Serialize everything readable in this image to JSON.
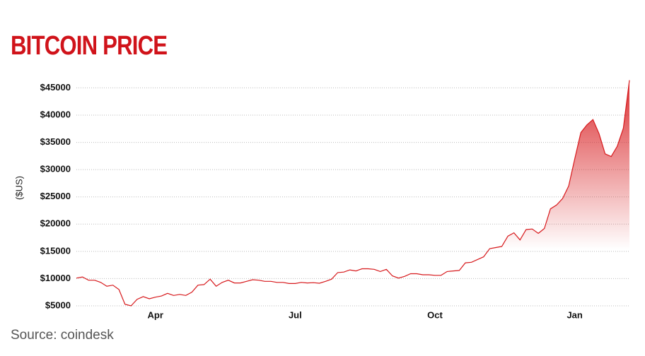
{
  "chart_data": {
    "type": "line",
    "title": "BITCOIN PRICE",
    "y_label": "($US)",
    "source": "Source: coindesk",
    "color": "#d7191c",
    "grid": true,
    "categories": [
      null,
      null,
      null,
      null,
      null,
      null,
      null,
      null,
      null,
      null,
      null,
      null,
      null,
      "Apr",
      null,
      null,
      null,
      null,
      null,
      null,
      null,
      null,
      null,
      null,
      null,
      null,
      null,
      null,
      null,
      null,
      null,
      null,
      null,
      null,
      null,
      null,
      "Jul",
      null,
      null,
      null,
      null,
      null,
      null,
      null,
      null,
      null,
      null,
      null,
      null,
      null,
      null,
      null,
      null,
      null,
      null,
      null,
      null,
      null,
      null,
      "Oct",
      null,
      null,
      null,
      null,
      null,
      null,
      null,
      null,
      null,
      null,
      null,
      null,
      null,
      null,
      null,
      null,
      null,
      null,
      null,
      null,
      null,
      null,
      "Jan",
      null,
      null,
      null,
      null,
      null,
      null,
      null,
      null,
      null
    ],
    "values": [
      10100,
      10300,
      9700,
      9700,
      9300,
      8600,
      8800,
      8000,
      5300,
      5000,
      6200,
      6700,
      6300,
      6600,
      6800,
      7300,
      6900,
      7100,
      6900,
      7500,
      8800,
      8900,
      9900,
      8600,
      9300,
      9700,
      9200,
      9200,
      9500,
      9800,
      9700,
      9500,
      9500,
      9300,
      9300,
      9100,
      9100,
      9300,
      9200,
      9250,
      9150,
      9500,
      9900,
      11100,
      11200,
      11600,
      11400,
      11800,
      11800,
      11700,
      11300,
      11700,
      10500,
      10100,
      10400,
      10900,
      10900,
      10700,
      10700,
      10600,
      10600,
      11300,
      11400,
      11500,
      12900,
      13000,
      13500,
      14000,
      15500,
      15700,
      15900,
      17800,
      18400,
      17100,
      19000,
      19100,
      18300,
      19200,
      22800,
      23500,
      24700,
      27000,
      32000,
      36800,
      38200,
      39200,
      36600,
      32900,
      32400,
      34300,
      37600,
      46400
    ],
    "ylim": [
      5000,
      47000
    ],
    "yticks": [
      {
        "value": 5000,
        "label": "$5000"
      },
      {
        "value": 10000,
        "label": "$10000"
      },
      {
        "value": 15000,
        "label": "$15000"
      },
      {
        "value": 20000,
        "label": "$20000"
      },
      {
        "value": 25000,
        "label": "$25000"
      },
      {
        "value": 30000,
        "label": "$30000"
      },
      {
        "value": 35000,
        "label": "$35000"
      },
      {
        "value": 40000,
        "label": "$40000"
      },
      {
        "value": 45000,
        "label": "$45000"
      }
    ]
  }
}
